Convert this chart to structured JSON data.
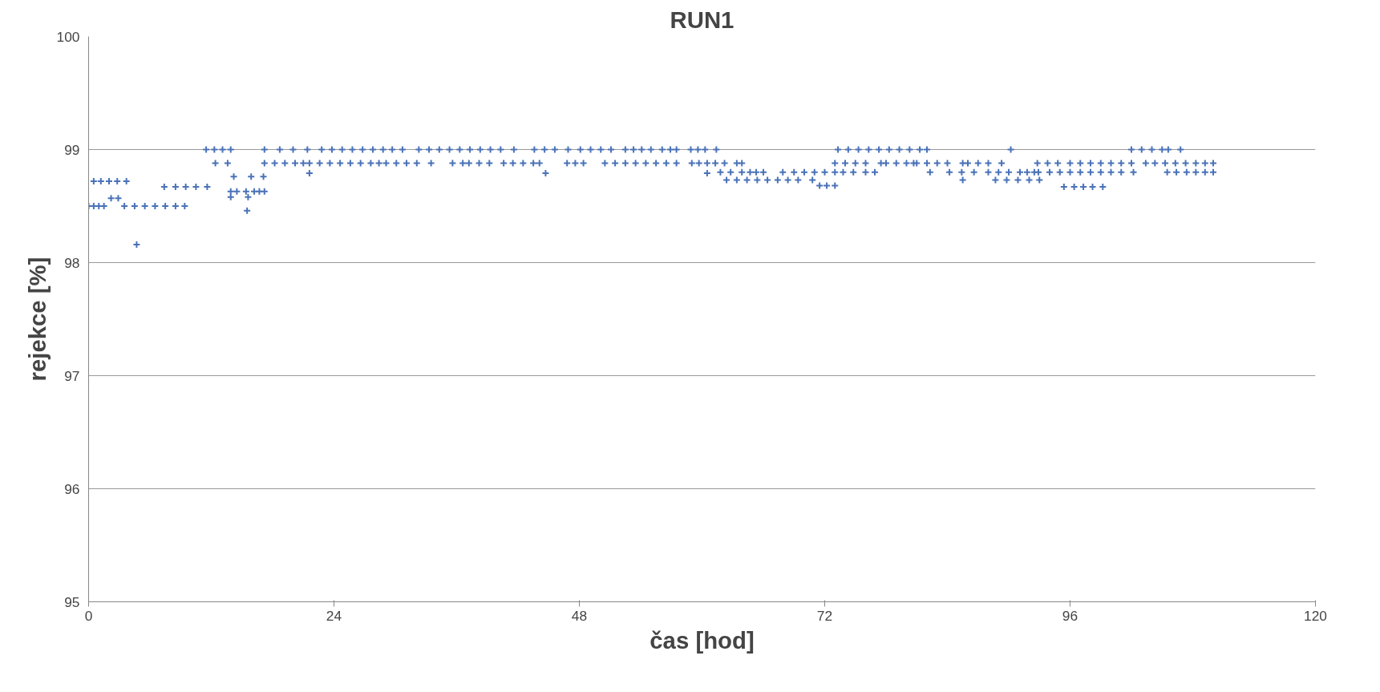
{
  "chart_data": {
    "type": "scatter",
    "title": "RUN1",
    "xlabel": "čas [hod]",
    "ylabel": "rejekce [%]",
    "xlim": [
      0,
      120
    ],
    "xticks": [
      0,
      24,
      48,
      72,
      96,
      120
    ],
    "ylim": [
      95,
      100
    ],
    "yticks": [
      95,
      96,
      97,
      98,
      99,
      100
    ],
    "grid": "y",
    "marker": "cross",
    "series": [
      {
        "color": "#4a72b8",
        "x": [
          0,
          0.5,
          1,
          1.5,
          3.5,
          4.5,
          5.5,
          6.5,
          7.5,
          8.5,
          9.4,
          0.5,
          1.2,
          2,
          2.8,
          3.7,
          2.2,
          2.9,
          4.7,
          7.4,
          8.5,
          9.5,
          10.5,
          11.6,
          11.5,
          12.3,
          13.1,
          13.9,
          17.2,
          18.7,
          20,
          21.4,
          22.8,
          23.8,
          24.8,
          25.8,
          26.8,
          27.8,
          28.8,
          29.7,
          30.7,
          32.3,
          33.3,
          34.3,
          35.3,
          36.3,
          37.3,
          38.3,
          39.3,
          40.3,
          41.6,
          43.6,
          44.6,
          45.6,
          46.9,
          48.1,
          49.1,
          50.1,
          51.1,
          52.5,
          53.3,
          54.1,
          55,
          56.1,
          56.9,
          57.5,
          58.9,
          59.6,
          60.3,
          61.4,
          73.3,
          74.3,
          75.3,
          76.3,
          77.3,
          78.3,
          79.3,
          80.3,
          81.3,
          82,
          90.2,
          102,
          103,
          104,
          105,
          105.6,
          106.8,
          12.4,
          13.6,
          17.2,
          18.2,
          19.2,
          20.2,
          21,
          21.6,
          22.6,
          23.6,
          24.6,
          25.6,
          26.6,
          27.6,
          28.4,
          29.1,
          30.1,
          31.1,
          32.1,
          33.5,
          35.6,
          36.6,
          37.2,
          38.2,
          39.2,
          40.6,
          41.5,
          42.5,
          43.5,
          44.1,
          46.8,
          47.6,
          48.4,
          50.5,
          51.5,
          52.5,
          53.5,
          54.5,
          55.5,
          56.5,
          57.5,
          59,
          59.7,
          60.5,
          61.3,
          62.2,
          63.4,
          63.9,
          73,
          74,
          75,
          76,
          77.5,
          78,
          79,
          80,
          80.7,
          81,
          82,
          83,
          84,
          85.5,
          86,
          87,
          88,
          89.3,
          92.8,
          93.8,
          94.8,
          96,
          97,
          98,
          99,
          100,
          101,
          102,
          103.4,
          104.3,
          105.3,
          106.3,
          107.3,
          108.3,
          109.2,
          110,
          14.2,
          15.9,
          17.1,
          13.9,
          14.5,
          15.4,
          16.2,
          16.7,
          17.2,
          13.9,
          15.6,
          15.5,
          21.6,
          44.7,
          60.5,
          61.8,
          62.8,
          63.9,
          64.7,
          65.3,
          66,
          67.9,
          69,
          70,
          71,
          72,
          73,
          73.8,
          74.8,
          76,
          76.9,
          82.3,
          84.2,
          85.4,
          86.6,
          88,
          89,
          90,
          91.1,
          91.8,
          92.5,
          92.9,
          94,
          95,
          96,
          97,
          98,
          99,
          100,
          101,
          102.2,
          105.5,
          106.4,
          107.4,
          108.3,
          109.2,
          110,
          62.4,
          63.4,
          64.4,
          65.4,
          66.4,
          67.4,
          68.4,
          69.4,
          70.8,
          85.5,
          88.7,
          89.8,
          90.9,
          92,
          93,
          71.5,
          72.2,
          73,
          95.4,
          96.4,
          97.3,
          98.2,
          99.2
        ],
        "values": [
          98.5,
          98.5,
          98.5,
          98.5,
          98.5,
          98.5,
          98.5,
          98.5,
          98.5,
          98.5,
          98.5,
          98.72,
          98.72,
          98.72,
          98.72,
          98.72,
          98.57,
          98.57,
          98.16,
          98.67,
          98.67,
          98.67,
          98.67,
          98.67,
          99,
          99,
          99,
          99,
          99,
          99,
          99,
          99,
          99,
          99,
          99,
          99,
          99,
          99,
          99,
          99,
          99,
          99,
          99,
          99,
          99,
          99,
          99,
          99,
          99,
          99,
          99,
          99,
          99,
          99,
          99,
          99,
          99,
          99,
          99,
          99,
          99,
          99,
          99,
          99,
          99,
          99,
          99,
          99,
          99,
          99,
          99,
          99,
          99,
          99,
          99,
          99,
          99,
          99,
          99,
          99,
          99,
          99,
          99,
          99,
          99,
          99,
          99,
          98.88,
          98.88,
          98.88,
          98.88,
          98.88,
          98.88,
          98.88,
          98.88,
          98.88,
          98.88,
          98.88,
          98.88,
          98.88,
          98.88,
          98.88,
          98.88,
          98.88,
          98.88,
          98.88,
          98.88,
          98.88,
          98.88,
          98.88,
          98.88,
          98.88,
          98.88,
          98.88,
          98.88,
          98.88,
          98.88,
          98.88,
          98.88,
          98.88,
          98.88,
          98.88,
          98.88,
          98.88,
          98.88,
          98.88,
          98.88,
          98.88,
          98.88,
          98.88,
          98.88,
          98.88,
          98.88,
          98.88,
          98.88,
          98.88,
          98.88,
          98.88,
          98.88,
          98.88,
          98.88,
          98.88,
          98.88,
          98.88,
          98.88,
          98.88,
          98.88,
          98.88,
          98.88,
          98.88,
          98.88,
          98.88,
          98.88,
          98.88,
          98.88,
          98.88,
          98.88,
          98.88,
          98.88,
          98.88,
          98.88,
          98.88,
          98.88,
          98.88,
          98.88,
          98.88,
          98.88,
          98.88,
          98.88,
          98.88,
          98.88,
          98.76,
          98.76,
          98.76,
          98.63,
          98.63,
          98.63,
          98.63,
          98.63,
          98.63,
          98.58,
          98.58,
          98.46,
          98.79,
          98.79,
          98.79,
          98.8,
          98.8,
          98.8,
          98.8,
          98.8,
          98.8,
          98.8,
          98.8,
          98.8,
          98.8,
          98.8,
          98.8,
          98.8,
          98.8,
          98.8,
          98.8,
          98.8,
          98.8,
          98.8,
          98.8,
          98.8,
          98.8,
          98.8,
          98.8,
          98.8,
          98.8,
          98.8,
          98.8,
          98.8,
          98.8,
          98.8,
          98.8,
          98.8,
          98.8,
          98.8,
          98.8,
          98.8,
          98.8,
          98.8,
          98.8,
          98.8,
          98.8,
          98.73,
          98.73,
          98.73,
          98.73,
          98.73,
          98.73,
          98.73,
          98.73,
          98.73,
          98.73,
          98.73,
          98.73,
          98.73,
          98.73,
          98.73,
          98.68,
          98.68,
          98.68,
          98.67,
          98.67,
          98.67,
          98.67,
          98.67
        ]
      }
    ]
  }
}
